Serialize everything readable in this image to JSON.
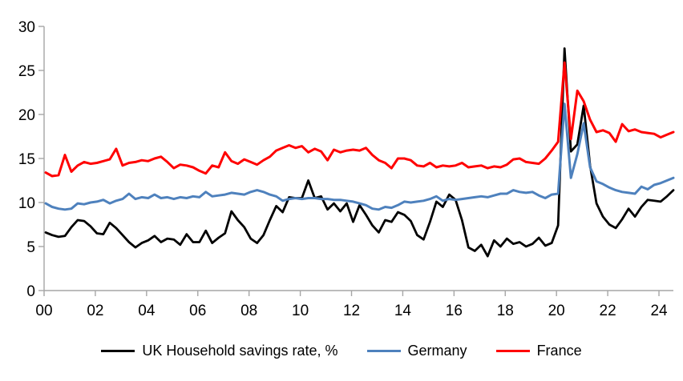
{
  "chart_data": {
    "type": "line",
    "title": "",
    "x_axis": {
      "start_year": 2000,
      "points_per_year": 4,
      "tick_step_years": 2,
      "tick_labels": [
        "00",
        "02",
        "04",
        "06",
        "08",
        "10",
        "12",
        "14",
        "16",
        "18",
        "20",
        "22",
        "24"
      ]
    },
    "y_axis": {
      "min": 0,
      "max": 30,
      "tick_labels": [
        "0",
        "5",
        "10",
        "15",
        "20",
        "25",
        "30"
      ]
    },
    "grid": false,
    "legend_position": "bottom",
    "axis_color": "#a6a6a6",
    "series": [
      {
        "name": "UK Household savings rate, %",
        "color": "#000000",
        "values": [
          6.6,
          6.3,
          6.1,
          6.2,
          7.2,
          8.0,
          7.9,
          7.3,
          6.5,
          6.4,
          7.7,
          7.1,
          6.3,
          5.5,
          4.9,
          5.4,
          5.7,
          6.2,
          5.5,
          5.9,
          5.8,
          5.2,
          6.4,
          5.5,
          5.5,
          6.8,
          5.4,
          6.0,
          6.5,
          9.0,
          8.0,
          7.2,
          5.9,
          5.4,
          6.3,
          8.0,
          9.6,
          8.9,
          10.6,
          10.5,
          10.5,
          12.5,
          10.5,
          10.7,
          9.2,
          9.9,
          9.0,
          9.9,
          7.8,
          9.7,
          8.6,
          7.4,
          6.6,
          8.0,
          7.8,
          8.9,
          8.6,
          7.9,
          6.3,
          5.8,
          7.8,
          10.1,
          9.5,
          10.9,
          10.3,
          8.0,
          4.9,
          4.5,
          5.2,
          3.9,
          5.7,
          5.0,
          5.9,
          5.3,
          5.5,
          5.0,
          5.3,
          6.0,
          5.1,
          5.4,
          7.4,
          27.5,
          15.8,
          16.6,
          21.0,
          14.2,
          9.9,
          8.4,
          7.5,
          7.1,
          8.1,
          9.3,
          8.4,
          9.5,
          10.3,
          10.2,
          10.1,
          10.7,
          11.4
        ]
      },
      {
        "name": "Germany",
        "color": "#4E81BD",
        "values": [
          9.9,
          9.5,
          9.3,
          9.2,
          9.3,
          9.9,
          9.8,
          10.0,
          10.1,
          10.3,
          9.9,
          10.2,
          10.4,
          11.0,
          10.4,
          10.6,
          10.5,
          10.9,
          10.5,
          10.6,
          10.4,
          10.6,
          10.5,
          10.7,
          10.6,
          11.2,
          10.7,
          10.8,
          10.9,
          11.1,
          11.0,
          10.9,
          11.2,
          11.4,
          11.2,
          10.9,
          10.7,
          10.2,
          10.4,
          10.5,
          10.4,
          10.5,
          10.5,
          10.4,
          10.4,
          10.3,
          10.3,
          10.2,
          10.1,
          9.9,
          9.7,
          9.3,
          9.2,
          9.5,
          9.4,
          9.7,
          10.1,
          10.0,
          10.1,
          10.2,
          10.4,
          10.7,
          10.2,
          10.4,
          10.3,
          10.4,
          10.5,
          10.6,
          10.7,
          10.6,
          10.8,
          11.0,
          11.0,
          11.4,
          11.2,
          11.1,
          11.2,
          10.8,
          10.5,
          10.9,
          11.0,
          21.2,
          12.8,
          15.5,
          19.0,
          14.0,
          12.4,
          12.1,
          11.7,
          11.4,
          11.2,
          11.1,
          11.0,
          11.8,
          11.5,
          12.0,
          12.2,
          12.5,
          12.8
        ]
      },
      {
        "name": "France",
        "color": "#FF0000",
        "values": [
          13.4,
          13.0,
          13.1,
          15.4,
          13.5,
          14.2,
          14.6,
          14.4,
          14.5,
          14.7,
          14.9,
          16.1,
          14.2,
          14.5,
          14.6,
          14.8,
          14.7,
          15.0,
          15.2,
          14.6,
          13.9,
          14.3,
          14.2,
          14.0,
          13.6,
          13.3,
          14.2,
          14.0,
          15.7,
          14.7,
          14.4,
          14.9,
          14.6,
          14.3,
          14.8,
          15.2,
          15.9,
          16.2,
          16.5,
          16.2,
          16.4,
          15.7,
          16.1,
          15.8,
          14.8,
          16.0,
          15.7,
          15.9,
          16.0,
          15.9,
          16.2,
          15.4,
          14.8,
          14.5,
          13.9,
          15.0,
          15.0,
          14.8,
          14.2,
          14.1,
          14.5,
          14.0,
          14.2,
          14.1,
          14.2,
          14.5,
          14.0,
          14.1,
          14.2,
          13.9,
          14.1,
          14.0,
          14.3,
          14.9,
          15.0,
          14.6,
          14.5,
          14.4,
          15.0,
          15.9,
          16.9,
          25.9,
          17.2,
          22.7,
          21.5,
          19.4,
          18.0,
          18.2,
          17.9,
          16.9,
          18.9,
          18.1,
          18.3,
          18.0,
          17.9,
          17.8,
          17.4,
          17.7,
          18.0
        ]
      }
    ]
  }
}
